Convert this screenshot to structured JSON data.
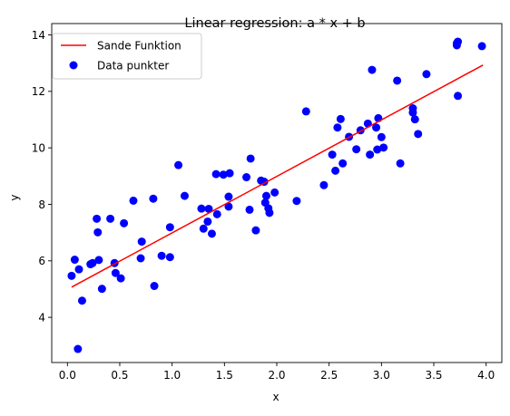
{
  "chart_data": {
    "type": "scatter",
    "title": "Linear regression: a * x + b",
    "xlabel": "x",
    "ylabel": "y",
    "xlim": [
      -0.15,
      4.15
    ],
    "ylim": [
      2.4,
      14.4
    ],
    "x_ticks": [
      0.0,
      0.5,
      1.0,
      1.5,
      2.0,
      2.5,
      3.0,
      3.5,
      4.0
    ],
    "x_tick_labels": [
      "0.0",
      "0.5",
      "1.0",
      "1.5",
      "2.0",
      "2.5",
      "3.0",
      "3.5",
      "4.0"
    ],
    "y_ticks": [
      4,
      6,
      8,
      10,
      12,
      14
    ],
    "y_tick_labels": [
      "4",
      "6",
      "8",
      "10",
      "12",
      "14"
    ],
    "grid": false,
    "legend_placement": "top-left",
    "series": [
      {
        "name": "Sande Funktion",
        "kind": "line",
        "color": "#ff0000",
        "x": [
          0.04,
          3.97
        ],
        "y": [
          5.07,
          12.93
        ]
      },
      {
        "name": "Data punkter",
        "kind": "scatter",
        "color": "#0000ff",
        "x": [
          0.04,
          0.07,
          0.11,
          0.14,
          0.1,
          0.22,
          0.24,
          0.28,
          0.29,
          0.3,
          0.33,
          0.41,
          0.45,
          0.46,
          0.51,
          0.54,
          0.63,
          0.7,
          0.71,
          0.83,
          0.82,
          0.9,
          0.98,
          0.98,
          1.06,
          1.12,
          1.28,
          1.3,
          1.34,
          1.35,
          1.38,
          1.42,
          1.43,
          1.49,
          1.54,
          1.54,
          1.55,
          1.71,
          1.74,
          1.75,
          1.8,
          1.85,
          1.88,
          1.89,
          1.9,
          1.92,
          1.93,
          1.98,
          2.19,
          2.28,
          2.45,
          2.53,
          2.56,
          2.58,
          2.61,
          2.63,
          2.69,
          2.76,
          2.8,
          2.87,
          2.89,
          2.91,
          2.95,
          2.96,
          2.97,
          3.0,
          3.02,
          3.15,
          3.18,
          3.3,
          3.3,
          3.32,
          3.35,
          3.43,
          3.72,
          3.72,
          3.73,
          3.73,
          3.96
        ],
        "y": [
          5.47,
          6.04,
          5.7,
          4.59,
          2.88,
          5.88,
          5.92,
          7.49,
          7.01,
          6.03,
          5.01,
          7.49,
          5.92,
          5.57,
          5.38,
          7.33,
          8.13,
          6.09,
          6.68,
          5.11,
          8.2,
          6.18,
          6.13,
          7.19,
          9.39,
          8.3,
          7.85,
          7.14,
          7.39,
          7.84,
          6.96,
          9.07,
          7.65,
          9.05,
          8.27,
          7.92,
          9.1,
          8.96,
          7.81,
          9.62,
          7.08,
          8.84,
          8.8,
          8.06,
          8.3,
          7.86,
          7.7,
          8.42,
          8.12,
          11.29,
          8.68,
          9.76,
          9.19,
          10.72,
          11.02,
          9.45,
          10.39,
          9.95,
          10.62,
          10.86,
          9.76,
          12.76,
          10.72,
          9.94,
          11.05,
          10.38,
          10.01,
          12.38,
          9.45,
          11.25,
          11.4,
          11.01,
          10.49,
          12.61,
          13.7,
          13.63,
          13.76,
          11.84,
          13.6
        ]
      }
    ]
  }
}
